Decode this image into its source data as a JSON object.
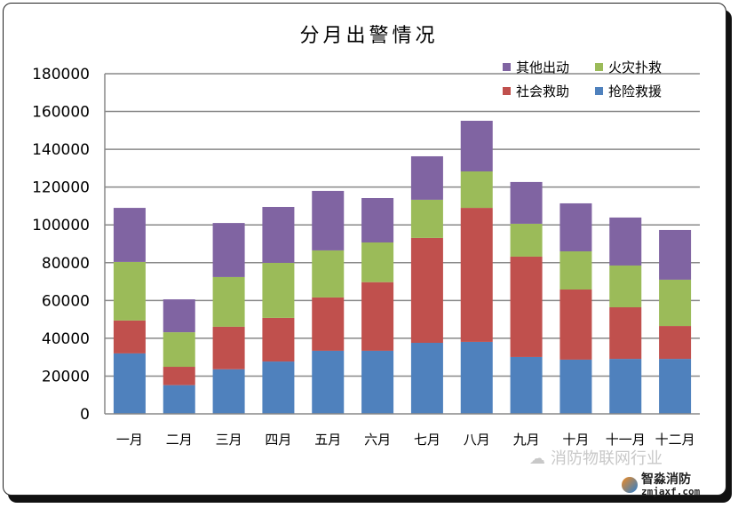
{
  "chart_data": {
    "type": "bar",
    "stacked": true,
    "title": "分月出警情况",
    "categories": [
      "一月",
      "二月",
      "三月",
      "四月",
      "五月",
      "六月",
      "七月",
      "八月",
      "九月",
      "十月",
      "十一月",
      "十二月"
    ],
    "series": [
      {
        "name": "抢险救援",
        "color": "#4F81BD",
        "values": [
          32000,
          15200,
          23600,
          27700,
          33400,
          33400,
          37600,
          38100,
          30100,
          28700,
          29100,
          29100
        ]
      },
      {
        "name": "社会救助",
        "color": "#C0504D",
        "values": [
          17400,
          9700,
          22500,
          23100,
          28200,
          36300,
          55500,
          70900,
          53100,
          37100,
          27300,
          17400
        ]
      },
      {
        "name": "火灾扑救",
        "color": "#9BBB59",
        "values": [
          31000,
          18300,
          26300,
          29100,
          24900,
          21000,
          20200,
          19300,
          17400,
          20200,
          22100,
          24500
        ]
      },
      {
        "name": "其他出动",
        "color": "#8064A2",
        "values": [
          28600,
          17400,
          28600,
          29600,
          31500,
          23500,
          23000,
          26800,
          22100,
          25400,
          25400,
          26300
        ]
      }
    ],
    "yticks": [
      "0",
      "20000",
      "40000",
      "60000",
      "80000",
      "100000",
      "120000",
      "140000",
      "160000",
      "180000"
    ],
    "ylim": [
      0,
      180000
    ],
    "grid": true,
    "legend": "top-right"
  },
  "watermark": {
    "text": "消防物联网行业",
    "logo_text": "智淼消防",
    "logo_domain": "zmjaxf.com"
  }
}
